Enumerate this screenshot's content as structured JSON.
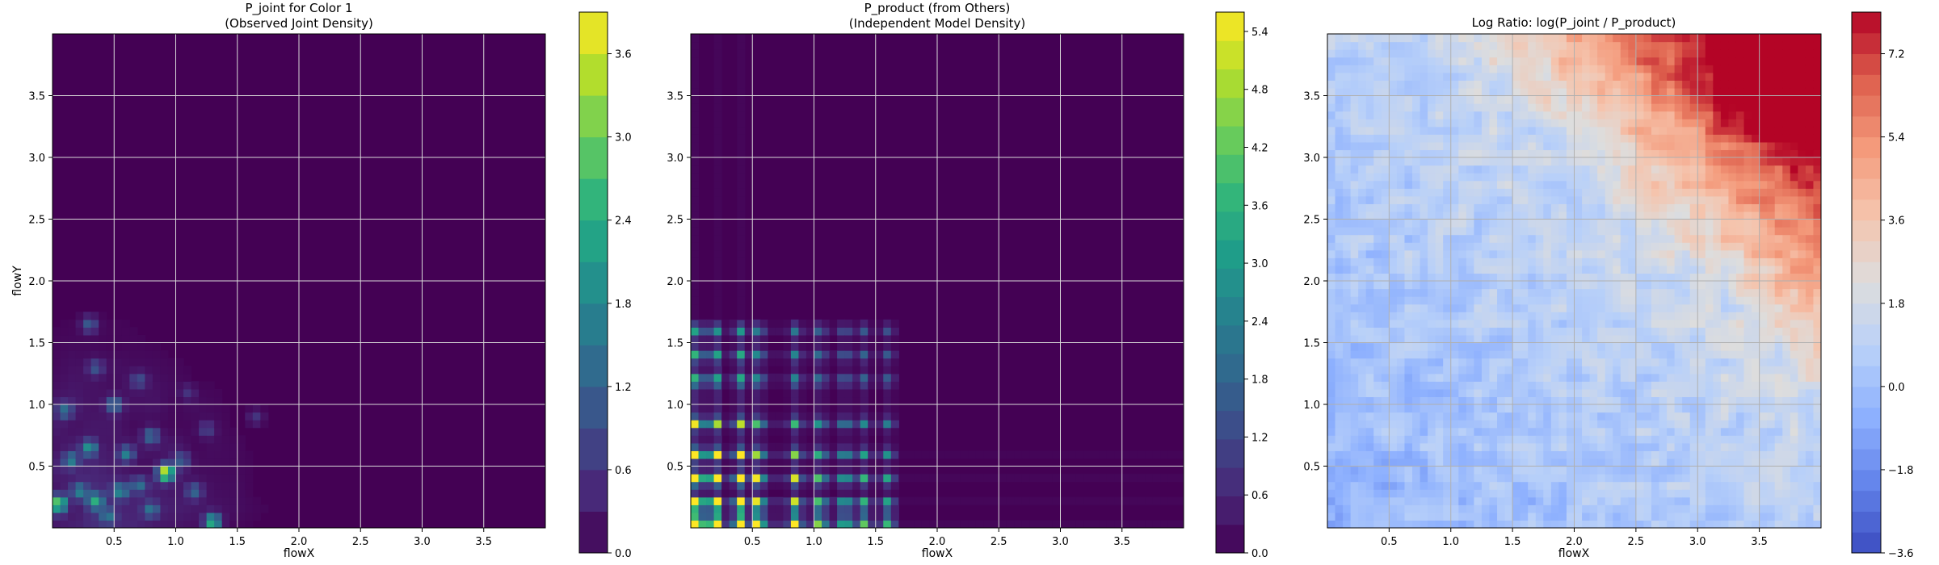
{
  "chart_data": [
    {
      "type": "heatmap",
      "title_line1": "P_joint for Color 1",
      "title_line2": "(Observed Joint Density)",
      "xlabel": "flowX",
      "ylabel": "flowY",
      "xlim": [
        0,
        4.0
      ],
      "ylim": [
        0,
        4.0
      ],
      "x_ticks": [
        "0.5",
        "1.0",
        "1.5",
        "2.0",
        "2.5",
        "3.0",
        "3.5"
      ],
      "y_ticks": [
        "0.5",
        "1.0",
        "1.5",
        "2.0",
        "2.5",
        "3.0",
        "3.5"
      ],
      "grid": true,
      "colormap": "viridis",
      "colorbar_range": [
        0,
        3.9
      ],
      "colorbar_ticks": [
        "0.0",
        "0.6",
        "1.2",
        "1.8",
        "2.4",
        "3.0",
        "3.6"
      ],
      "hotspots": [
        {
          "x": 0.05,
          "y": 0.2,
          "v": 2.8
        },
        {
          "x": 0.22,
          "y": 0.3,
          "v": 1.4
        },
        {
          "x": 0.3,
          "y": 0.65,
          "v": 1.9
        },
        {
          "x": 0.35,
          "y": 0.22,
          "v": 2.0
        },
        {
          "x": 0.45,
          "y": 0.1,
          "v": 1.2
        },
        {
          "x": 0.55,
          "y": 0.3,
          "v": 1.6
        },
        {
          "x": 0.6,
          "y": 0.6,
          "v": 1.5
        },
        {
          "x": 0.7,
          "y": 0.35,
          "v": 1.2
        },
        {
          "x": 0.8,
          "y": 0.75,
          "v": 1.3
        },
        {
          "x": 0.92,
          "y": 0.45,
          "v": 3.7
        },
        {
          "x": 1.05,
          "y": 0.55,
          "v": 1.0
        },
        {
          "x": 1.15,
          "y": 0.3,
          "v": 1.1
        },
        {
          "x": 1.3,
          "y": 0.05,
          "v": 2.6
        },
        {
          "x": 0.1,
          "y": 0.95,
          "v": 1.2
        },
        {
          "x": 0.5,
          "y": 1.0,
          "v": 1.4
        },
        {
          "x": 0.35,
          "y": 1.3,
          "v": 0.9
        },
        {
          "x": 0.3,
          "y": 1.65,
          "v": 1.1
        },
        {
          "x": 0.7,
          "y": 1.2,
          "v": 0.8
        },
        {
          "x": 1.25,
          "y": 0.8,
          "v": 0.7
        },
        {
          "x": 1.65,
          "y": 0.9,
          "v": 0.6
        },
        {
          "x": 1.1,
          "y": 1.1,
          "v": 0.5
        },
        {
          "x": 0.15,
          "y": 0.55,
          "v": 1.5
        },
        {
          "x": 0.8,
          "y": 0.15,
          "v": 1.3
        }
      ]
    },
    {
      "type": "heatmap",
      "title_line1": "P_product (from Others)",
      "title_line2": "(Independent Model Density)",
      "xlabel": "flowX",
      "ylabel": "",
      "xlim": [
        0,
        4.0
      ],
      "ylim": [
        0,
        4.0
      ],
      "x_ticks": [
        "0.5",
        "1.0",
        "1.5",
        "2.0",
        "2.5",
        "3.0",
        "3.5"
      ],
      "y_ticks": [
        "0.5",
        "1.0",
        "1.5",
        "2.0",
        "2.5",
        "3.0",
        "3.5"
      ],
      "grid": true,
      "colormap": "viridis",
      "colorbar_range": [
        0,
        5.6
      ],
      "colorbar_ticks": [
        "0.0",
        "0.6",
        "1.2",
        "1.8",
        "2.4",
        "3.0",
        "3.6",
        "4.2",
        "4.8",
        "5.4"
      ],
      "peaks_x": [
        0.05,
        0.2,
        0.4,
        0.55,
        0.85,
        1.05,
        1.25,
        1.4,
        1.6
      ],
      "peaks_y": [
        0.05,
        0.2,
        0.4,
        0.6,
        0.85,
        1.2,
        1.4,
        1.6
      ]
    },
    {
      "type": "heatmap",
      "title_line1": "Log Ratio: log(P_joint / P_product)",
      "title_line2": "",
      "xlabel": "flowX",
      "ylabel": "",
      "xlim": [
        0,
        4.0
      ],
      "ylim": [
        0,
        4.0
      ],
      "x_ticks": [
        "0.5",
        "1.0",
        "1.5",
        "2.0",
        "2.5",
        "3.0",
        "3.5"
      ],
      "y_ticks": [
        "0.5",
        "1.0",
        "1.5",
        "2.0",
        "2.5",
        "3.0",
        "3.5"
      ],
      "grid": true,
      "colormap": "coolwarm",
      "colorbar_range": [
        -3.6,
        8.1
      ],
      "colorbar_ticks": [
        "−3.6",
        "−1.8",
        "0.0",
        "1.8",
        "3.6",
        "5.4",
        "7.2"
      ]
    }
  ]
}
